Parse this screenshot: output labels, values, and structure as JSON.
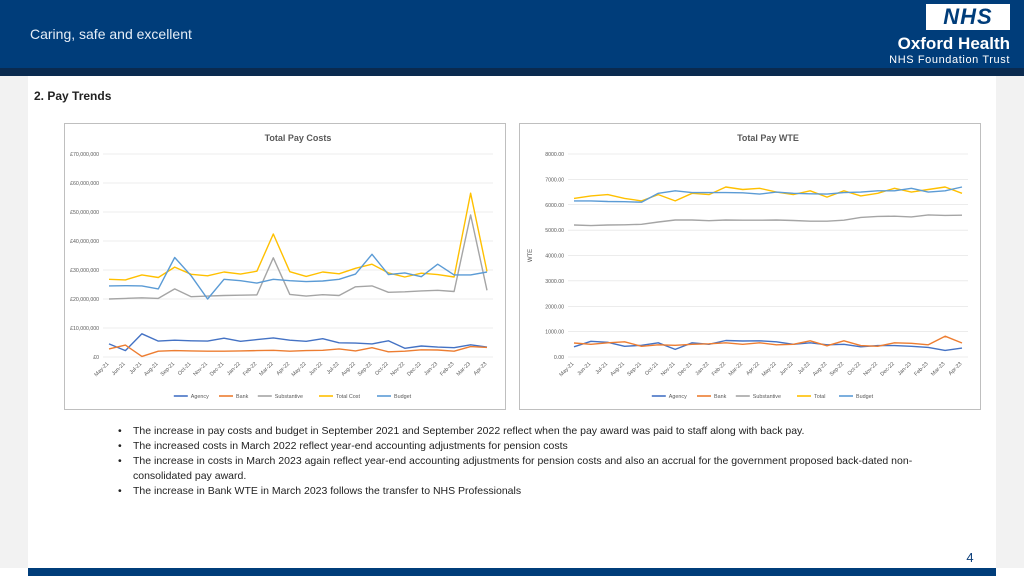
{
  "header": {
    "tagline": "Caring, safe and excellent",
    "logo_text": "NHS",
    "org_name": "Oxford Health",
    "org_sub": "NHS Foundation Trust"
  },
  "section_title": "2. Pay Trends",
  "colors": {
    "agency": "#4472c4",
    "bank": "#ed7d31",
    "substantive": "#a5a5a5",
    "total": "#ffc000",
    "budget": "#5b9bd5",
    "header": "#003d7a"
  },
  "chart_data": [
    {
      "type": "line",
      "title": "Total Pay Costs",
      "xlabel": "",
      "ylabel": "",
      "ylim": [
        0,
        70000000
      ],
      "yticks": [
        0,
        10000000,
        20000000,
        30000000,
        40000000,
        50000000,
        60000000,
        70000000
      ],
      "ytick_labels": [
        "£0",
        "£10,000,000",
        "£20,000,000",
        "£30,000,000",
        "£40,000,000",
        "£50,000,000",
        "£60,000,000",
        "£70,000,000"
      ],
      "grid": true,
      "legend": "bottom",
      "categories": [
        "May-21",
        "Jun-21",
        "Jul-21",
        "Aug-21",
        "Sep-21",
        "Oct-21",
        "Nov-21",
        "Dec-21",
        "Jan-22",
        "Feb-22",
        "Mar-22",
        "Apr-22",
        "May-22",
        "Jun-22",
        "Jul-22",
        "Aug-22",
        "Sep-22",
        "Oct-22",
        "Nov-22",
        "Dec-22",
        "Jan-23",
        "Feb-23",
        "Mar-23",
        "Apr-23"
      ],
      "series": [
        {
          "name": "Agency",
          "color": "#4472c4",
          "values": [
            4500000,
            2200000,
            8000000,
            5500000,
            5800000,
            5600000,
            5500000,
            6500000,
            5400000,
            6000000,
            6600000,
            5800000,
            5400000,
            6300000,
            4900000,
            4800000,
            4500000,
            5600000,
            3000000,
            3800000,
            3400000,
            3200000,
            4200000,
            3400000
          ]
        },
        {
          "name": "Bank",
          "color": "#ed7d31",
          "values": [
            2800000,
            4100000,
            200000,
            2000000,
            2200000,
            2100000,
            2000000,
            2000000,
            2100000,
            2200000,
            2300000,
            2000000,
            2200000,
            2300000,
            2800000,
            2100000,
            3200000,
            1800000,
            2000000,
            2500000,
            2400000,
            2000000,
            3600000,
            3300000
          ]
        },
        {
          "name": "Substantive",
          "color": "#a5a5a5",
          "values": [
            20000000,
            20200000,
            20400000,
            20200000,
            23500000,
            20800000,
            21000000,
            21200000,
            21300000,
            21400000,
            34200000,
            21600000,
            21000000,
            21500000,
            21200000,
            24200000,
            24500000,
            22300000,
            22500000,
            22800000,
            23000000,
            22600000,
            49000000,
            23000000
          ]
        },
        {
          "name": "Total Cost",
          "color": "#ffc000",
          "values": [
            26800000,
            26600000,
            28300000,
            27400000,
            31000000,
            28500000,
            28000000,
            29300000,
            28600000,
            29600000,
            42400000,
            29400000,
            27800000,
            29300000,
            28700000,
            30600000,
            32000000,
            29000000,
            27600000,
            28900000,
            28400000,
            27600000,
            56500000,
            29500000
          ]
        },
        {
          "name": "Budget",
          "color": "#5b9bd5",
          "values": [
            24500000,
            24600000,
            24500000,
            23500000,
            34300000,
            28000000,
            20000000,
            26800000,
            26300000,
            25500000,
            26800000,
            26300000,
            26000000,
            26200000,
            26800000,
            28600000,
            35400000,
            28400000,
            29000000,
            27700000,
            32000000,
            28300000,
            28300000,
            29300000
          ]
        }
      ]
    },
    {
      "type": "line",
      "title": "Total Pay WTE",
      "xlabel": "",
      "ylabel": "WTE",
      "ylim": [
        0,
        8000
      ],
      "yticks": [
        0,
        1000,
        2000,
        3000,
        4000,
        5000,
        6000,
        7000,
        8000
      ],
      "ytick_labels": [
        "0.00",
        "1000.00",
        "2000.00",
        "3000.00",
        "4000.00",
        "5000.00",
        "6000.00",
        "7000.00",
        "8000.00"
      ],
      "grid": true,
      "legend": "bottom",
      "categories": [
        "May-21",
        "Jun-21",
        "Jul-21",
        "Aug-21",
        "Sep-21",
        "Oct-21",
        "Nov-21",
        "Dec-21",
        "Jan-22",
        "Feb-22",
        "Mar-22",
        "Apr-22",
        "May-22",
        "Jun-22",
        "Jul-22",
        "Aug-22",
        "Sep-22",
        "Oct-22",
        "Nov-22",
        "Dec-22",
        "Jan-23",
        "Feb-23",
        "Mar-23",
        "Apr-23"
      ],
      "series": [
        {
          "name": "Agency",
          "color": "#4472c4",
          "values": [
            400,
            620,
            580,
            420,
            460,
            560,
            300,
            560,
            500,
            650,
            630,
            640,
            600,
            500,
            560,
            480,
            500,
            400,
            450,
            450,
            420,
            380,
            260,
            350
          ]
        },
        {
          "name": "Bank",
          "color": "#ed7d31",
          "values": [
            550,
            500,
            560,
            600,
            420,
            480,
            460,
            500,
            520,
            560,
            500,
            560,
            480,
            500,
            640,
            440,
            640,
            450,
            420,
            560,
            540,
            480,
            820,
            550
          ]
        },
        {
          "name": "Substantive",
          "color": "#a5a5a5",
          "values": [
            5200,
            5180,
            5200,
            5210,
            5230,
            5320,
            5400,
            5400,
            5370,
            5400,
            5390,
            5390,
            5400,
            5380,
            5350,
            5350,
            5390,
            5500,
            5540,
            5550,
            5520,
            5600,
            5580,
            5590
          ]
        },
        {
          "name": "Total",
          "color": "#ffc000",
          "values": [
            6250,
            6350,
            6400,
            6250,
            6150,
            6400,
            6150,
            6450,
            6400,
            6700,
            6600,
            6650,
            6500,
            6400,
            6550,
            6300,
            6550,
            6350,
            6450,
            6650,
            6500,
            6600,
            6700,
            6450
          ]
        },
        {
          "name": "Budget",
          "color": "#5b9bd5",
          "values": [
            6150,
            6150,
            6130,
            6120,
            6100,
            6450,
            6550,
            6480,
            6480,
            6480,
            6470,
            6420,
            6500,
            6450,
            6430,
            6420,
            6480,
            6500,
            6550,
            6550,
            6650,
            6500,
            6550,
            6700
          ]
        }
      ]
    }
  ],
  "bullets": [
    "The increase in pay costs and budget in September 2021 and September 2022 reflect when the pay award was paid to staff along with back pay.",
    "The increased costs in March 2022 reflect year-end accounting adjustments for pension costs",
    "The increase in costs in March 2023 again reflect year-end accounting adjustments for pension costs and also an accrual for the government proposed back-dated non-consolidated pay award.",
    "The increase in Bank WTE in March 2023 follows the transfer to NHS Professionals"
  ],
  "page_number": "4"
}
